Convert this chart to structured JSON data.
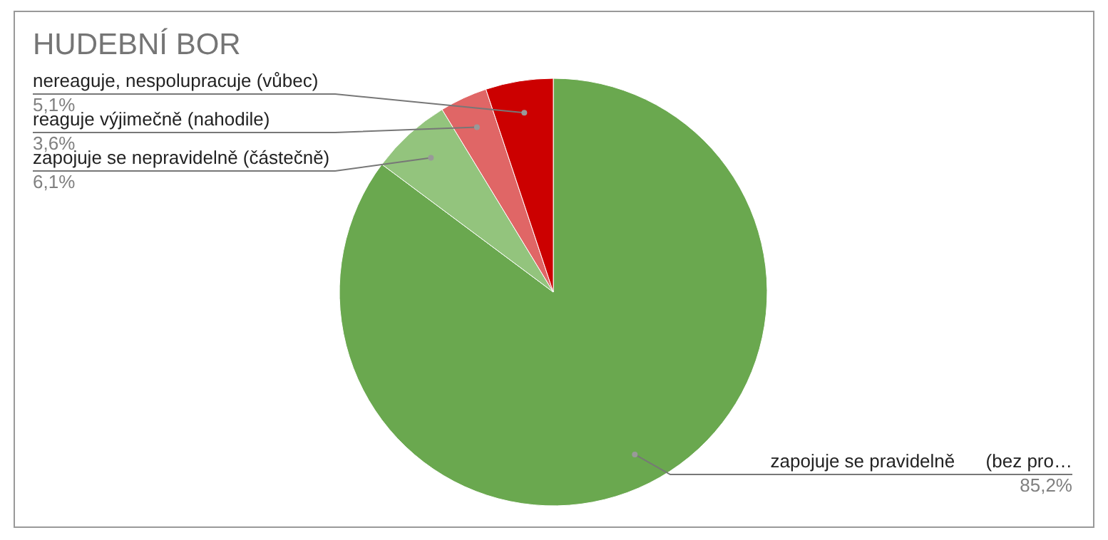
{
  "chart_data": {
    "type": "pie",
    "title": "HUDEBNÍ BOR",
    "categories": [
      "zapojuje se pravidelně      (bez pro…",
      "zapojuje se nepravidelně (částečně)",
      "reaguje výjimečně (nahodile)",
      "nereaguje, nespolupracuje (vůbec)"
    ],
    "values": [
      85.2,
      6.1,
      3.6,
      5.1
    ],
    "colors": [
      "#6aa84f",
      "#93c47d",
      "#e06666",
      "#cc0000"
    ],
    "value_labels": [
      "85,2%",
      "6,1%",
      "3,6%",
      "5,1%"
    ]
  }
}
